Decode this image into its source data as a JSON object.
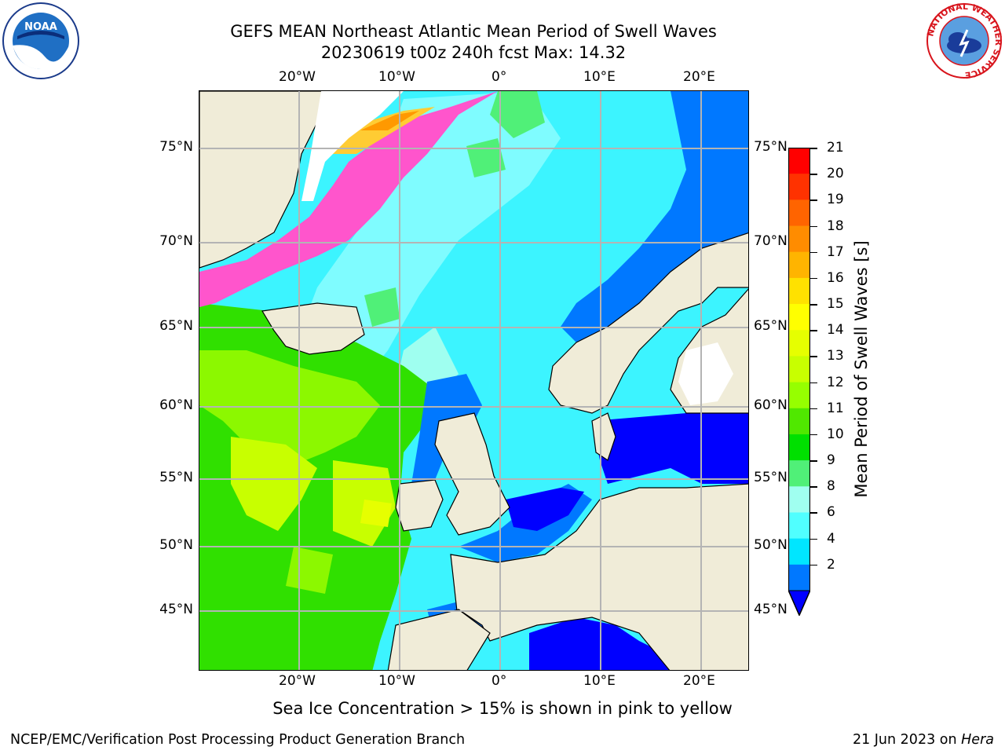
{
  "title": {
    "line1": "GEFS MEAN Northeast Atlantic Mean Period of Swell Waves",
    "line2": "20230619 t00z 240h fcst   Max: 14.32"
  },
  "map": {
    "lon_ticks": [
      "20°W",
      "10°W",
      "0°",
      "10°E",
      "20°E"
    ],
    "lat_ticks_left": [
      "75°N",
      "70°N",
      "65°N",
      "60°N",
      "55°N",
      "50°N",
      "45°N"
    ],
    "lat_ticks_right": [
      "75°N",
      "70°N",
      "65°N",
      "60°N",
      "55°N",
      "50°N",
      "45°N"
    ]
  },
  "colorbar": {
    "title": "Mean Period of Swell Waves [s]",
    "labels": [
      "21",
      "20",
      "19",
      "18",
      "17",
      "16",
      "15",
      "14",
      "13",
      "12",
      "11",
      "10",
      "9",
      "8",
      "6",
      "4",
      "2"
    ],
    "colors": [
      "#ff0000",
      "#ff3200",
      "#ff6400",
      "#ff8c00",
      "#ffb400",
      "#ffe100",
      "#ffff00",
      "#e6ff00",
      "#c8ff00",
      "#96ff00",
      "#50e800",
      "#00e000",
      "#50f078",
      "#a0fff0",
      "#50ffff",
      "#00e6ff",
      "#0078ff"
    ],
    "under_color": "#0000ff"
  },
  "note": "Sea Ice Concentration > 15% is shown in pink to yellow",
  "footer": {
    "left": "NCEP/EMC/Verification Post Processing Product Generation Branch",
    "right_date": "21 Jun 2023 on ",
    "right_host": "Hera"
  },
  "logos": {
    "noaa": "NOAA",
    "nws_ring": "NATIONAL WEATHER SERVICE"
  }
}
